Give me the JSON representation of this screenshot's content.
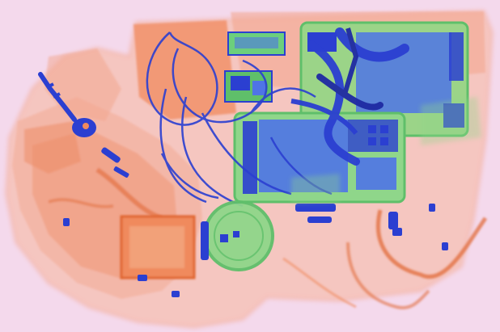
{
  "scan": {
    "background": "#f4d9ec",
    "colors": {
      "organic_light": "#f3b9a9",
      "organic": "#f08a5d",
      "organic_dark": "#e0652f",
      "mixed_green": "#8fd68a",
      "mixed_green_dark": "#5fbf6a",
      "metal_blue": "#4f74e6",
      "metal_blue_dark": "#2b3fd1",
      "metal_navy": "#1f2aa3"
    },
    "objects": [
      "suitcase-outline",
      "bag-contents-left",
      "key",
      "phone-board-right",
      "phone-board-center",
      "circuit-module-top",
      "cable-bundle",
      "round-container",
      "small-box",
      "bolts-and-screws",
      "strap-right"
    ]
  }
}
